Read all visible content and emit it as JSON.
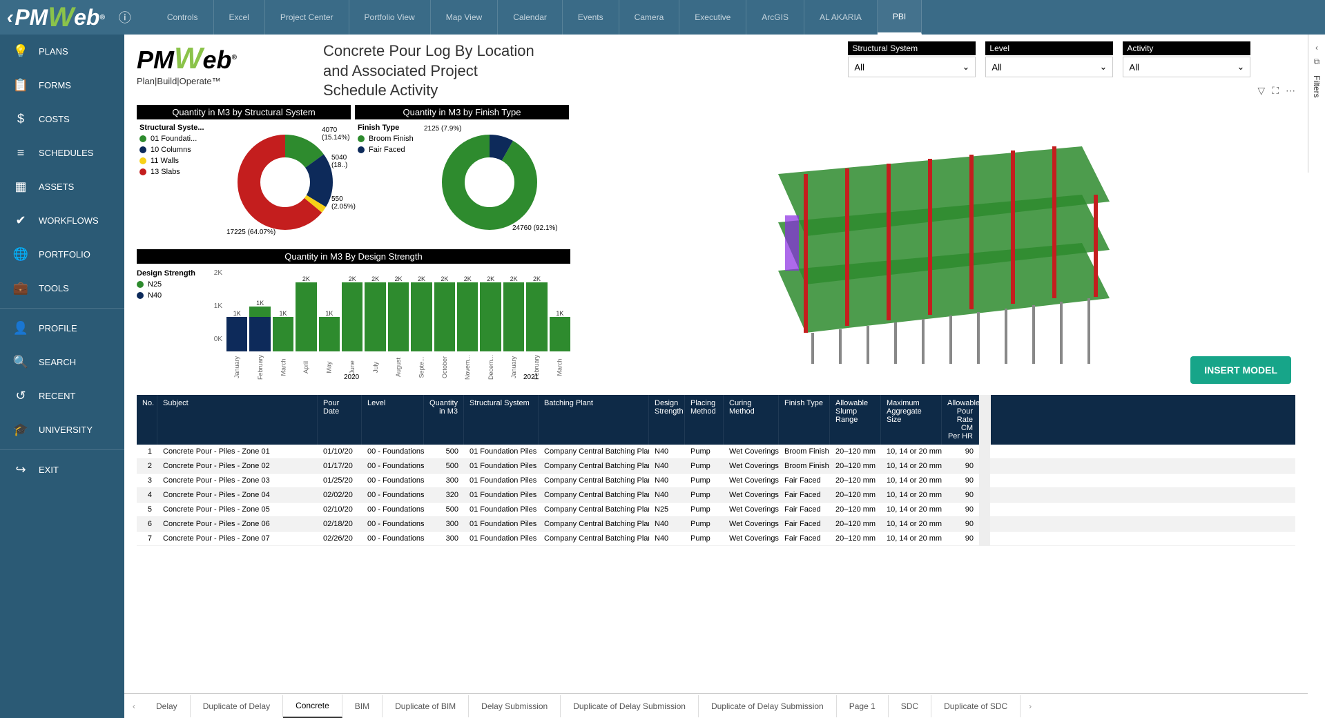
{
  "app": {
    "name": "PMWeb"
  },
  "top_tabs": [
    "Controls",
    "Excel",
    "Project Center",
    "Portfolio View",
    "Map View",
    "Calendar",
    "Events",
    "Camera",
    "Executive",
    "ArcGIS",
    "AL AKARIA",
    "PBI"
  ],
  "top_tab_active": "PBI",
  "sidebar": {
    "groups": [
      [
        "💡 PLANS",
        "📋 FORMS",
        "$ COSTS",
        "≡ SCHEDULES",
        "▦ ASSETS",
        "✔ WORKFLOWS",
        "🌐 PORTFOLIO",
        "💼 TOOLS"
      ],
      [
        "👤 PROFILE",
        "🔍 SEARCH",
        "↺ RECENT",
        "🎓 UNIVERSITY"
      ],
      [
        "↪ EXIT"
      ]
    ],
    "items": [
      {
        "icon": "💡",
        "label": "PLANS"
      },
      {
        "icon": "📋",
        "label": "FORMS"
      },
      {
        "icon": "$",
        "label": "COSTS"
      },
      {
        "icon": "≡",
        "label": "SCHEDULES"
      },
      {
        "icon": "▦",
        "label": "ASSETS"
      },
      {
        "icon": "✔",
        "label": "WORKFLOWS"
      },
      {
        "icon": "🌐",
        "label": "PORTFOLIO"
      },
      {
        "icon": "💼",
        "label": "TOOLS"
      },
      {
        "icon": "👤",
        "label": "PROFILE"
      },
      {
        "icon": "🔍",
        "label": "SEARCH"
      },
      {
        "icon": "↺",
        "label": "RECENT"
      },
      {
        "icon": "🎓",
        "label": "UNIVERSITY"
      },
      {
        "icon": "↪",
        "label": "EXIT"
      }
    ]
  },
  "report": {
    "logo_tagline": "Plan|Build|Operate™",
    "title": "Concrete Pour Log By Location and Associated Project Schedule Activity"
  },
  "filters": [
    {
      "label": "Structural System",
      "value": "All"
    },
    {
      "label": "Level",
      "value": "All"
    },
    {
      "label": "Activity",
      "value": "All"
    }
  ],
  "donut1": {
    "title": "Quantity in M3 by Structural System",
    "legend_title": "Structural Syste...",
    "legend": [
      {
        "label": "01 Foundati...",
        "color": "#2e8b2e"
      },
      {
        "label": "10 Columns",
        "color": "#0d2a5a"
      },
      {
        "label": "11 Walls",
        "color": "#f7d117"
      },
      {
        "label": "13 Slabs",
        "color": "#c41e1e"
      }
    ],
    "slices": [
      {
        "value": 4070,
        "pct": "15.14%",
        "color": "#2e8b2e"
      },
      {
        "value": 5040,
        "pct": "18..",
        "color": "#0d2a5a"
      },
      {
        "value": 550,
        "pct": "2.05%",
        "color": "#f7d117"
      },
      {
        "value": 17225,
        "pct": "64.07%",
        "color": "#c41e1e"
      }
    ],
    "callouts": {
      "a": "4070 (15.14%)",
      "b": "5040 (18..)",
      "c": "550 (2.05%)",
      "d": "17225 (64.07%)"
    }
  },
  "donut2": {
    "title": "Quantity in M3 by Finish Type",
    "legend_title": "Finish Type",
    "legend": [
      {
        "label": "Broom Finish",
        "color": "#2e8b2e"
      },
      {
        "label": "Fair Faced",
        "color": "#0d2a5a"
      }
    ],
    "slices": [
      {
        "value": 24760,
        "pct": "92.1%",
        "color": "#2e8b2e"
      },
      {
        "value": 2125,
        "pct": "7.9%",
        "color": "#0d2a5a"
      }
    ],
    "callouts": {
      "a": "2125 (7.9%)",
      "b": "24760 (92.1%)"
    }
  },
  "bar": {
    "title": "Quantity in M3 By Design Strength",
    "legend_title": "Design Strength",
    "legend": [
      {
        "label": "N25",
        "color": "#2e8b2e"
      },
      {
        "label": "N40",
        "color": "#0d2a5a"
      }
    ],
    "ylim": [
      0,
      2000
    ],
    "yticks": [
      "0K",
      "1K",
      "2K"
    ],
    "year_labels": [
      "2020",
      "2021"
    ],
    "bars": [
      {
        "month": "January",
        "n25": 0,
        "n40": 1000,
        "label": "1K"
      },
      {
        "month": "February",
        "n25": 300,
        "n40": 1000,
        "label": "1K"
      },
      {
        "month": "March",
        "n25": 1000,
        "n40": 0,
        "label": "1K"
      },
      {
        "month": "April",
        "n25": 2000,
        "n40": 0,
        "label": "2K"
      },
      {
        "month": "May",
        "n25": 1000,
        "n40": 0,
        "label": "1K"
      },
      {
        "month": "June",
        "n25": 2000,
        "n40": 0,
        "label": "2K"
      },
      {
        "month": "July",
        "n25": 2000,
        "n40": 0,
        "label": "2K"
      },
      {
        "month": "August",
        "n25": 2000,
        "n40": 0,
        "label": "2K"
      },
      {
        "month": "Septe...",
        "n25": 2000,
        "n40": 0,
        "label": "2K"
      },
      {
        "month": "October",
        "n25": 2000,
        "n40": 0,
        "label": "2K"
      },
      {
        "month": "Novem...",
        "n25": 2000,
        "n40": 0,
        "label": "2K"
      },
      {
        "month": "Decem...",
        "n25": 2000,
        "n40": 0,
        "label": "2K"
      },
      {
        "month": "January",
        "n25": 2000,
        "n40": 0,
        "label": "2K"
      },
      {
        "month": "February",
        "n25": 2000,
        "n40": 0,
        "label": "2K"
      },
      {
        "month": "March",
        "n25": 1000,
        "n40": 0,
        "label": "1K"
      }
    ]
  },
  "insert_btn": "INSERT MODEL",
  "table": {
    "columns": [
      "No.",
      "Subject",
      "Pour Date",
      "Level",
      "Quantity in M3",
      "Structural System",
      "Batching Plant",
      "Design Strength",
      "Placing Method",
      "Curing Method",
      "Finish Type",
      "Allowable Slump Range",
      "Maximum Aggregate Size",
      "Allowable Pour Rate CM Per HR"
    ],
    "rows": [
      [
        "1",
        "Concrete Pour - Piles - Zone 01",
        "01/10/20",
        "00 - Foundations",
        "500",
        "01 Foundation Piles",
        "Company Central Batching Plant",
        "N40",
        "Pump",
        "Wet Coverings",
        "Broom Finish",
        "20–120 mm",
        "10, 14 or 20 mm",
        "90"
      ],
      [
        "2",
        "Concrete Pour - Piles - Zone 02",
        "01/17/20",
        "00 - Foundations",
        "500",
        "01 Foundation Piles",
        "Company Central Batching Plant",
        "N40",
        "Pump",
        "Wet Coverings",
        "Broom Finish",
        "20–120 mm",
        "10, 14 or 20 mm",
        "90"
      ],
      [
        "3",
        "Concrete Pour - Piles - Zone 03",
        "01/25/20",
        "00 - Foundations",
        "300",
        "01 Foundation Piles",
        "Company Central Batching Plant",
        "N40",
        "Pump",
        "Wet Coverings",
        "Fair Faced",
        "20–120 mm",
        "10, 14 or 20 mm",
        "90"
      ],
      [
        "4",
        "Concrete Pour - Piles - Zone 04",
        "02/02/20",
        "00 - Foundations",
        "320",
        "01 Foundation Piles",
        "Company Central Batching Plant",
        "N40",
        "Pump",
        "Wet Coverings",
        "Fair Faced",
        "20–120 mm",
        "10, 14 or 20 mm",
        "90"
      ],
      [
        "5",
        "Concrete Pour - Piles - Zone 05",
        "02/10/20",
        "00 - Foundations",
        "500",
        "01 Foundation Piles",
        "Company Central Batching Plant",
        "N25",
        "Pump",
        "Wet Coverings",
        "Fair Faced",
        "20–120 mm",
        "10, 14 or 20 mm",
        "90"
      ],
      [
        "6",
        "Concrete Pour - Piles - Zone 06",
        "02/18/20",
        "00 - Foundations",
        "300",
        "01 Foundation Piles",
        "Company Central Batching Plant",
        "N40",
        "Pump",
        "Wet Coverings",
        "Fair Faced",
        "20–120 mm",
        "10, 14 or 20 mm",
        "90"
      ],
      [
        "7",
        "Concrete Pour - Piles - Zone 07",
        "02/26/20",
        "00 - Foundations",
        "300",
        "01 Foundation Piles",
        "Company Central Batching Plant",
        "N40",
        "Pump",
        "Wet Coverings",
        "Fair Faced",
        "20–120 mm",
        "10, 14 or 20 mm",
        "90"
      ]
    ]
  },
  "bottom_tabs": [
    "Delay",
    "Duplicate of Delay",
    "Concrete",
    "BIM",
    "Duplicate of BIM",
    "Delay Submission",
    "Duplicate of Delay Submission",
    "Duplicate of Delay Submission",
    "Page 1",
    "SDC",
    "Duplicate of SDC"
  ],
  "bottom_tab_active": "Concrete",
  "filters_pane": "Filters"
}
